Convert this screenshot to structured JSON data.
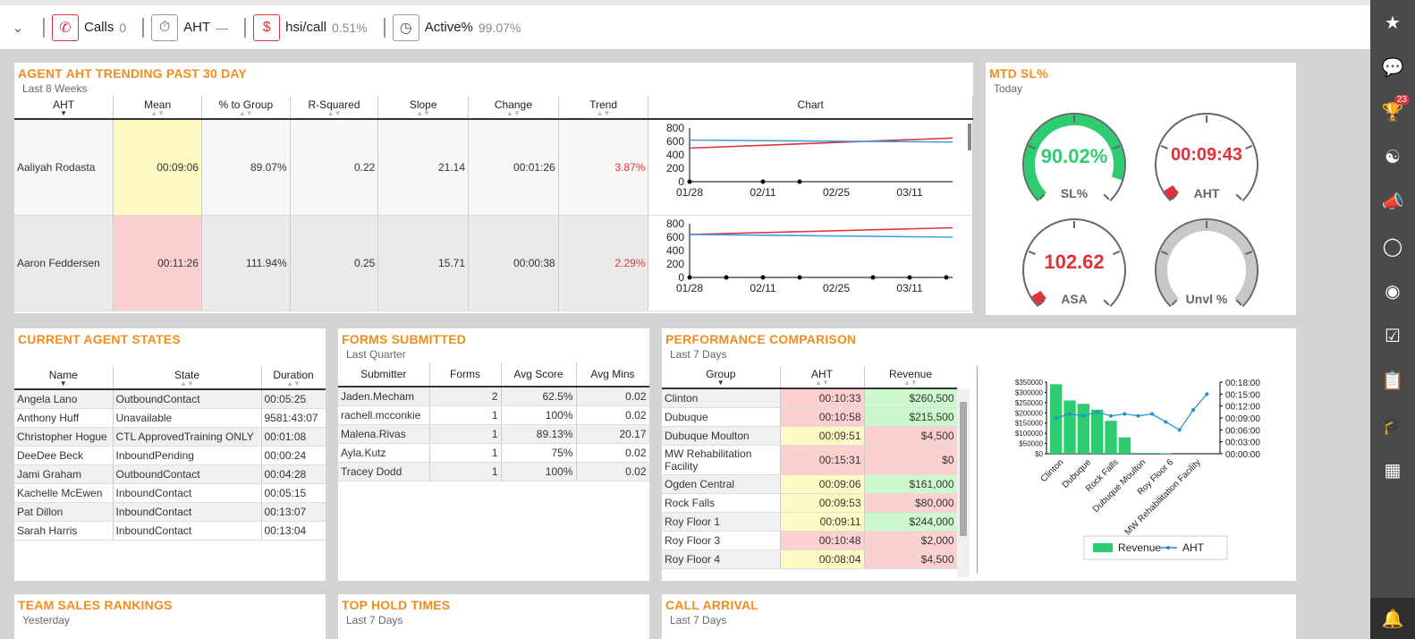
{
  "topbar": {
    "kpis": [
      {
        "label": "Calls",
        "value": "0"
      },
      {
        "label": "AHT",
        "value": "—"
      },
      {
        "label": "hsi/call",
        "value": "0.51%"
      },
      {
        "label": "Active%",
        "value": "99.07%"
      }
    ]
  },
  "rightbar": {
    "badge": "23"
  },
  "aht_panel": {
    "title": "AGENT AHT TRENDING PAST 30 DAY",
    "subtitle": "Last 8 Weeks",
    "columns": [
      "AHT",
      "Mean",
      "% to Group",
      "R-Squared",
      "Slope",
      "Change",
      "Trend",
      "Chart"
    ],
    "rows": [
      {
        "name": "Aaliyah Rodasta",
        "mean": "00:09:06",
        "pct": "89.07%",
        "r2": "0.22",
        "slope": "21.14",
        "change": "00:01:26",
        "trend": "3.87%"
      },
      {
        "name": "Aaron Feddersen",
        "mean": "00:11:26",
        "pct": "111.94%",
        "r2": "0.25",
        "slope": "15.71",
        "change": "00:00:38",
        "trend": "2.29%"
      }
    ]
  },
  "chart_data": [
    {
      "type": "line",
      "y_ticks": [
        "800",
        "600",
        "400",
        "200",
        "0"
      ],
      "x_ticks": [
        "01/28",
        "02/11",
        "02/25",
        "03/11"
      ],
      "ylim": [
        0,
        800
      ],
      "series": [
        {
          "values_start": 500,
          "values_end": 650,
          "color": "#e0303a"
        },
        {
          "values_start": 620,
          "values_end": 590,
          "color": "#3aa0e0"
        }
      ]
    },
    {
      "type": "line",
      "y_ticks": [
        "800",
        "600",
        "400",
        "200",
        "0"
      ],
      "x_ticks": [
        "01/28",
        "02/11",
        "02/25",
        "03/11"
      ],
      "ylim": [
        0,
        800
      ],
      "series": [
        {
          "values_start": 640,
          "values_end": 740,
          "color": "#e0303a"
        },
        {
          "values_start": 640,
          "values_end": 600,
          "color": "#3aa0e0"
        }
      ]
    },
    {
      "type": "bar",
      "categories": [
        "Clinton",
        "Dubuque",
        "Rock Falls",
        "Dubuque Moulton",
        "Roy Floor 6",
        "MW Rehabilitation Facility"
      ],
      "bar_values": [
        340000,
        260500,
        244000,
        215500,
        161000,
        80000,
        4500,
        4500,
        2000,
        0,
        0,
        0
      ],
      "aht_values_min": [
        9,
        10,
        9.5,
        10.5,
        9.5,
        10,
        9.5,
        10,
        8,
        6,
        11,
        15
      ],
      "y_left_ticks": [
        "$350000",
        "$300000",
        "$250000",
        "$200000",
        "$150000",
        "$100000",
        "$50000",
        "$0"
      ],
      "y_right_ticks": [
        "00:18:00",
        "00:15:00",
        "00:12:00",
        "00:09:00",
        "00:06:00",
        "00:03:00",
        "00:00:00"
      ],
      "legend": [
        "Revenue",
        "AHT"
      ]
    }
  ],
  "mtd_panel": {
    "title": "MTD SL%",
    "subtitle": "Today",
    "gauges": [
      {
        "value": "90.02%",
        "label": "SL%",
        "color": "#2ecc71",
        "fill": 0.9
      },
      {
        "value": "00:09:43",
        "label": "AHT",
        "color": "#e0303a",
        "fill": 0.05
      },
      {
        "value": "102.62",
        "label": "ASA",
        "color": "#e0303a",
        "fill": 0.05
      },
      {
        "value": "",
        "label": "Unvl %",
        "color": "#c8c8c8",
        "fill": 1.0
      }
    ]
  },
  "agent_states": {
    "title": "CURRENT AGENT STATES",
    "columns": [
      "Name",
      "State",
      "Duration"
    ],
    "rows": [
      [
        "Angela Lano",
        "OutboundContact",
        "00:05:25"
      ],
      [
        "Anthony Huff",
        "Unavailable",
        "9581:43:07"
      ],
      [
        "Christopher Hogue",
        "CTL ApprovedTraining ONLY",
        "00:01:08"
      ],
      [
        "DeeDee Beck",
        "InboundPending",
        "00:00:24"
      ],
      [
        "Jami Graham",
        "OutboundContact",
        "00:04:28"
      ],
      [
        "Kachelle McEwen",
        "InboundContact",
        "00:05:15"
      ],
      [
        "Pat Dillon",
        "InboundContact",
        "00:13:07"
      ],
      [
        "Sarah Harris",
        "InboundContact",
        "00:13:04"
      ]
    ]
  },
  "forms": {
    "title": "FORMS SUBMITTED",
    "subtitle": "Last Quarter",
    "columns": [
      "Submitter",
      "Forms",
      "Avg Score",
      "Avg Mins"
    ],
    "rows": [
      [
        "Jaden.Mecham",
        "2",
        "62.5%",
        "0.02"
      ],
      [
        "rachell.mcconkie",
        "1",
        "100%",
        "0.02"
      ],
      [
        "Malena.Rivas",
        "1",
        "89.13%",
        "20.17"
      ],
      [
        "Ayla.Kutz",
        "1",
        "75%",
        "0.02"
      ],
      [
        "Tracey Dodd",
        "1",
        "100%",
        "0.02"
      ]
    ]
  },
  "perf": {
    "title": "PERFORMANCE COMPARISON",
    "subtitle": "Last 7 Days",
    "columns": [
      "Group",
      "AHT",
      "Revenue"
    ],
    "rows": [
      {
        "group": "Clinton",
        "aht": "00:10:33",
        "rev": "$260,500",
        "a": "pink",
        "r": "green"
      },
      {
        "group": "Dubuque",
        "aht": "00:10:58",
        "rev": "$215,500",
        "a": "pink",
        "r": "green"
      },
      {
        "group": "Dubuque Moulton",
        "aht": "00:09:51",
        "rev": "$4,500",
        "a": "yellow",
        "r": "pink"
      },
      {
        "group": "MW Rehabilitation Facility",
        "aht": "00:15:31",
        "rev": "$0",
        "a": "pink",
        "r": "pink"
      },
      {
        "group": "Ogden Central",
        "aht": "00:09:06",
        "rev": "$161,000",
        "a": "yellow",
        "r": "green"
      },
      {
        "group": "Rock Falls",
        "aht": "00:09:53",
        "rev": "$80,000",
        "a": "yellow",
        "r": "pink"
      },
      {
        "group": "Roy Floor 1",
        "aht": "00:09:11",
        "rev": "$244,000",
        "a": "yellow",
        "r": "green"
      },
      {
        "group": "Roy Floor 3",
        "aht": "00:10:48",
        "rev": "$2,000",
        "a": "pink",
        "r": "pink"
      },
      {
        "group": "Roy Floor 4",
        "aht": "00:08:04",
        "rev": "$4,500",
        "a": "yellow",
        "r": "pink"
      }
    ]
  },
  "bottom": [
    {
      "title": "TEAM SALES RANKINGS",
      "subtitle": "Yesterday"
    },
    {
      "title": "TOP HOLD TIMES",
      "subtitle": "Last 7 Days"
    },
    {
      "title": "CALL ARRIVAL",
      "subtitle": "Last 7 Days"
    }
  ]
}
